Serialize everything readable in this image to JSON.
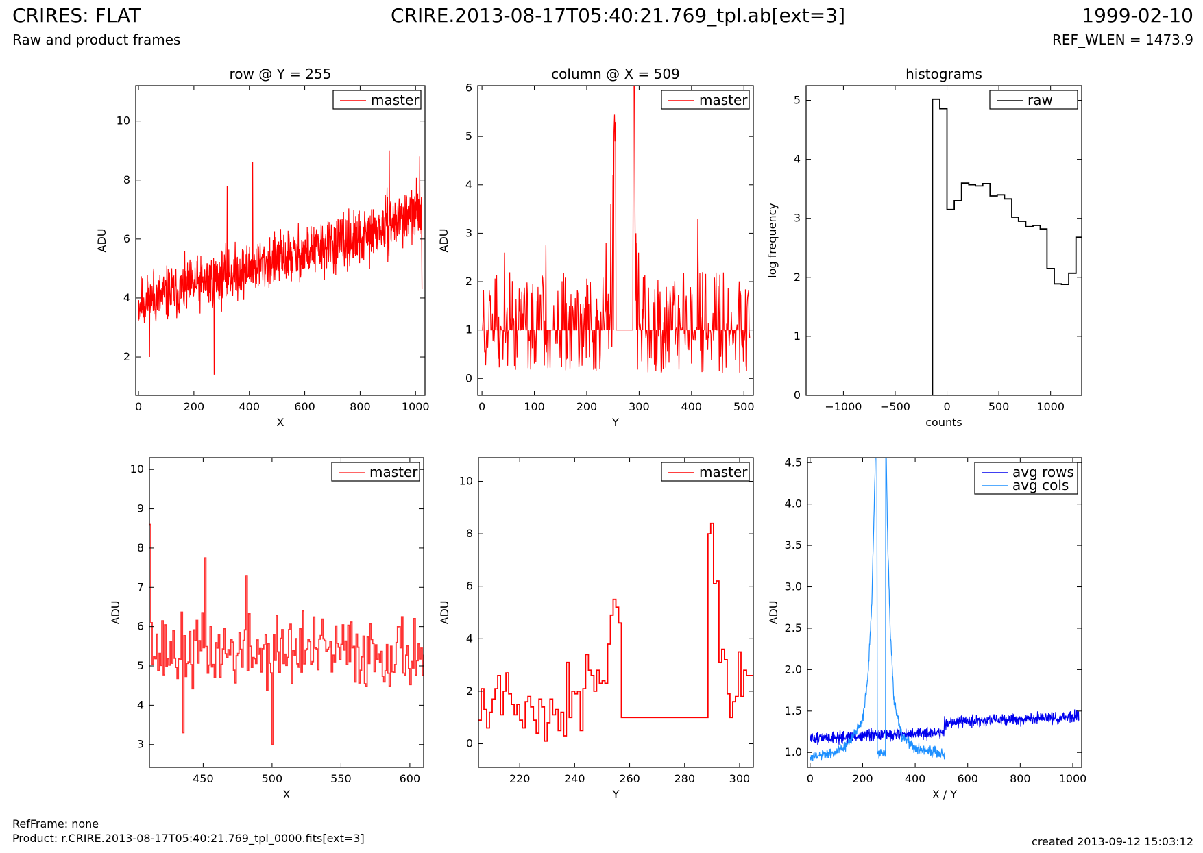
{
  "header": {
    "left_title": "CRIRES: FLAT",
    "left_subtitle": "Raw and product frames",
    "center_title": "CRIRE.2013-08-17T05:40:21.769_tpl.ab[ext=3]",
    "right_title": "1999-02-10",
    "right_subtitle": "REF_WLEN = 1473.9"
  },
  "footer": {
    "ref_frame": "RefFrame: none",
    "product": "Product: r.CRIRE.2013-08-17T05:40:21.769_tpl_0000.fits[ext=3]",
    "created": "created 2013-09-12 15:03:12"
  },
  "colors": {
    "red": "#ff0000",
    "black": "#000000",
    "blue": "#0000ee",
    "light_blue": "#1e90ff"
  },
  "chart_data": [
    {
      "type": "line",
      "title": "row @ Y = 255",
      "xlabel": "X",
      "ylabel": "ADU",
      "xlim": [
        -10,
        1034
      ],
      "ylim": [
        0.7,
        11.2
      ],
      "xticks": [
        0,
        200,
        400,
        600,
        800,
        1000
      ],
      "yticks": [
        2,
        4,
        6,
        8,
        10
      ],
      "legend": "top-right",
      "series": [
        {
          "name": "master",
          "color": "#ff0000",
          "step": false,
          "generator": {
            "kind": "noise",
            "x_start": 0,
            "x_end": 1023,
            "n": 1024,
            "trend": [
              [
                0,
                3.8
              ],
              [
                500,
                5.3
              ],
              [
                800,
                6.0
              ],
              [
                1023,
                7.0
              ]
            ],
            "amp": 0.9,
            "seed": 11
          },
          "points": [
            [
              40,
              2.0
            ],
            [
              55,
              5.0
            ],
            [
              273,
              1.4
            ],
            [
              320,
              7.8
            ],
            [
              412,
              8.6
            ],
            [
              905,
              9.0
            ],
            [
              1015,
              8.8
            ],
            [
              1023,
              4.3
            ]
          ]
        }
      ]
    },
    {
      "type": "line",
      "title": "column @ X = 509",
      "xlabel": "Y",
      "ylabel": "ADU",
      "xlim": [
        -8,
        518
      ],
      "ylim": [
        -0.35,
        6.05
      ],
      "xticks": [
        0,
        100,
        200,
        300,
        400,
        500
      ],
      "yticks": [
        0,
        1,
        2,
        3,
        4,
        5,
        6
      ],
      "legend": "top-right",
      "series": [
        {
          "name": "master",
          "color": "#ff0000",
          "step": false,
          "generator": {
            "kind": "spiky",
            "x_start": 0,
            "x_end": 511,
            "n": 512,
            "base": 1.0,
            "low": 0.1,
            "high": 2.2,
            "seed": 23,
            "plateaus": [
              [
                256,
                288,
                1.0
              ]
            ],
            "peaks": [
              [
                237,
                2.8
              ],
              [
                246,
                3.6
              ],
              [
                250,
                4.2
              ],
              [
                252,
                5.1
              ],
              [
                253,
                5.45
              ],
              [
                254,
                4.9
              ],
              [
                255,
                5.3
              ],
              [
                289,
                6.3
              ],
              [
                290,
                8.4
              ],
              [
                291,
                6.2
              ],
              [
                292,
                3.8
              ],
              [
                294,
                3.0
              ],
              [
                296,
                2.8
              ],
              [
                299,
                2.6
              ],
              [
                412,
                3.3
              ],
              [
                43,
                2.6
              ],
              [
                122,
                2.75
              ]
            ]
          }
        }
      ]
    },
    {
      "type": "line",
      "title": "histograms",
      "xlabel": "counts",
      "ylabel": "log frequency",
      "xlim": [
        -1360,
        1300
      ],
      "ylim": [
        0,
        5.25
      ],
      "xticks": [
        -1000,
        -500,
        0,
        500,
        1000
      ],
      "yticks": [
        0,
        1,
        2,
        3,
        4,
        5
      ],
      "legend": "top-right",
      "series": [
        {
          "name": "raw",
          "color": "#000000",
          "step": true,
          "points": [
            [
              -1360,
              0
            ],
            [
              -140,
              0
            ],
            [
              -140,
              5.02
            ],
            [
              -70,
              5.02
            ],
            [
              -70,
              4.86
            ],
            [
              0,
              4.86
            ],
            [
              0,
              3.15
            ],
            [
              70,
              3.15
            ],
            [
              70,
              3.3
            ],
            [
              140,
              3.3
            ],
            [
              140,
              3.6
            ],
            [
              210,
              3.6
            ],
            [
              210,
              3.57
            ],
            [
              275,
              3.57
            ],
            [
              275,
              3.55
            ],
            [
              345,
              3.55
            ],
            [
              345,
              3.59
            ],
            [
              415,
              3.59
            ],
            [
              415,
              3.38
            ],
            [
              485,
              3.38
            ],
            [
              485,
              3.4
            ],
            [
              555,
              3.4
            ],
            [
              555,
              3.33
            ],
            [
              625,
              3.33
            ],
            [
              625,
              3.02
            ],
            [
              690,
              3.02
            ],
            [
              690,
              2.95
            ],
            [
              760,
              2.95
            ],
            [
              760,
              2.86
            ],
            [
              830,
              2.86
            ],
            [
              830,
              2.88
            ],
            [
              900,
              2.88
            ],
            [
              900,
              2.82
            ],
            [
              965,
              2.82
            ],
            [
              965,
              2.15
            ],
            [
              1035,
              2.15
            ],
            [
              1035,
              1.89
            ],
            [
              1105,
              1.89
            ],
            [
              1105,
              1.88
            ],
            [
              1175,
              1.88
            ],
            [
              1175,
              2.07
            ],
            [
              1245,
              2.07
            ],
            [
              1245,
              2.68
            ],
            [
              1300,
              2.68
            ]
          ]
        }
      ]
    },
    {
      "type": "line",
      "xlabel": "X",
      "ylabel": "ADU",
      "xlim": [
        411,
        610
      ],
      "ylim": [
        2.42,
        10.3
      ],
      "xticks": [
        450,
        500,
        550,
        600
      ],
      "yticks": [
        3,
        4,
        5,
        6,
        7,
        8,
        9,
        10
      ],
      "legend": "top-right",
      "series": [
        {
          "name": "master",
          "color": "#ff3333",
          "step": true,
          "generator": {
            "kind": "noise",
            "x_start": 411,
            "x_end": 610,
            "n": 200,
            "trend": [
              [
                411,
                5.35
              ],
              [
                610,
                5.35
              ]
            ],
            "amp": 0.9,
            "seed": 37
          },
          "points": [
            [
              411,
              8.6
            ],
            [
              412,
              6.1
            ],
            [
              451,
              7.75
            ],
            [
              435,
              3.3
            ],
            [
              500,
              3.0
            ],
            [
              481,
              7.3
            ],
            [
              522,
              6.4
            ]
          ]
        }
      ]
    },
    {
      "type": "line",
      "xlabel": "Y",
      "ylabel": "ADU",
      "xlim": [
        205,
        305
      ],
      "ylim": [
        -0.9,
        10.9
      ],
      "xticks": [
        220,
        240,
        260,
        280,
        300
      ],
      "yticks": [
        0,
        2,
        4,
        6,
        8,
        10
      ],
      "legend": "top-right",
      "series": [
        {
          "name": "master",
          "color": "#ff0000",
          "step": true,
          "points": [
            [
              205,
              0.9
            ],
            [
              206,
              2.1
            ],
            [
              207,
              1.3
            ],
            [
              208,
              0.6
            ],
            [
              209,
              1.2
            ],
            [
              210,
              1.7
            ],
            [
              211,
              2.1
            ],
            [
              212,
              2.6
            ],
            [
              213,
              1.1
            ],
            [
              214,
              2.0
            ],
            [
              215,
              2.7
            ],
            [
              216,
              1.9
            ],
            [
              217,
              1.5
            ],
            [
              218,
              1.1
            ],
            [
              219,
              1.5
            ],
            [
              220,
              0.9
            ],
            [
              221,
              0.6
            ],
            [
              222,
              1.6
            ],
            [
              223,
              1.8
            ],
            [
              224,
              1.4
            ],
            [
              225,
              0.9
            ],
            [
              226,
              0.4
            ],
            [
              227,
              1.7
            ],
            [
              228,
              1.4
            ],
            [
              229,
              0.1
            ],
            [
              230,
              0.8
            ],
            [
              231,
              1.7
            ],
            [
              232,
              1.1
            ],
            [
              233,
              1.3
            ],
            [
              234,
              0.5
            ],
            [
              235,
              1.2
            ],
            [
              236,
              0.3
            ],
            [
              237,
              3.1
            ],
            [
              238,
              1.0
            ],
            [
              239,
              2.0
            ],
            [
              240,
              1.9
            ],
            [
              241,
              2.0
            ],
            [
              242,
              0.5
            ],
            [
              243,
              2.1
            ],
            [
              244,
              3.4
            ],
            [
              245,
              2.8
            ],
            [
              246,
              2.6
            ],
            [
              247,
              2.0
            ],
            [
              248,
              2.8
            ],
            [
              249,
              2.3
            ],
            [
              250,
              2.4
            ],
            [
              251,
              2.3
            ],
            [
              252,
              3.8
            ],
            [
              253,
              4.9
            ],
            [
              254,
              5.5
            ],
            [
              255,
              5.2
            ],
            [
              256,
              4.6
            ],
            [
              257,
              1.0
            ],
            [
              288,
              1.0
            ],
            [
              288.5,
              8.0
            ],
            [
              289.5,
              8.4
            ],
            [
              290.5,
              6.1
            ],
            [
              291.5,
              6.2
            ],
            [
              292.5,
              3.1
            ],
            [
              293.5,
              3.6
            ],
            [
              294.5,
              3.2
            ],
            [
              295.5,
              1.9
            ],
            [
              296.5,
              1.0
            ],
            [
              297.5,
              1.6
            ],
            [
              298.5,
              1.8
            ],
            [
              299.5,
              3.5
            ],
            [
              300.5,
              1.8
            ],
            [
              301.5,
              2.8
            ],
            [
              302.5,
              2.6
            ],
            [
              305,
              2.6
            ]
          ]
        }
      ]
    },
    {
      "type": "line",
      "xlabel": "X / Y",
      "ylabel": "ADU",
      "xlim": [
        -10,
        1034
      ],
      "ylim": [
        0.82,
        4.56
      ],
      "xticks": [
        0,
        200,
        400,
        600,
        800,
        1000
      ],
      "yticks": [
        1.0,
        1.5,
        2.0,
        2.5,
        3.0,
        3.5,
        4.0,
        4.5
      ],
      "legend": "top-right",
      "series": [
        {
          "name": "avg rows",
          "color": "#0000ee",
          "step": false,
          "generator": {
            "kind": "noise",
            "x_start": 0,
            "x_end": 1023,
            "n": 1024,
            "trend": [
              [
                0,
                1.17
              ],
              [
                510,
                1.24
              ],
              [
                512,
                1.36
              ],
              [
                1023,
                1.43
              ]
            ],
            "amp": 0.07,
            "seed": 51
          }
        },
        {
          "name": "avg cols",
          "color": "#1e90ff",
          "step": false,
          "generator": {
            "kind": "noise",
            "x_start": 0,
            "x_end": 511,
            "n": 512,
            "trend": [
              [
                0,
                0.93
              ],
              [
                100,
                1.0
              ],
              [
                150,
                1.12
              ],
              [
                200,
                1.4
              ],
              [
                220,
                1.9
              ],
              [
                235,
                2.8
              ],
              [
                248,
                4.5
              ],
              [
                254,
                5.0
              ],
              [
                256,
                0.99
              ],
              [
                287,
                0.99
              ],
              [
                288,
                5.0
              ],
              [
                295,
                3.6
              ],
              [
                305,
                2.5
              ],
              [
                320,
                1.6
              ],
              [
                350,
                1.2
              ],
              [
                400,
                1.05
              ],
              [
                511,
                0.97
              ]
            ],
            "amp": 0.06,
            "seed": 61
          }
        }
      ]
    }
  ]
}
